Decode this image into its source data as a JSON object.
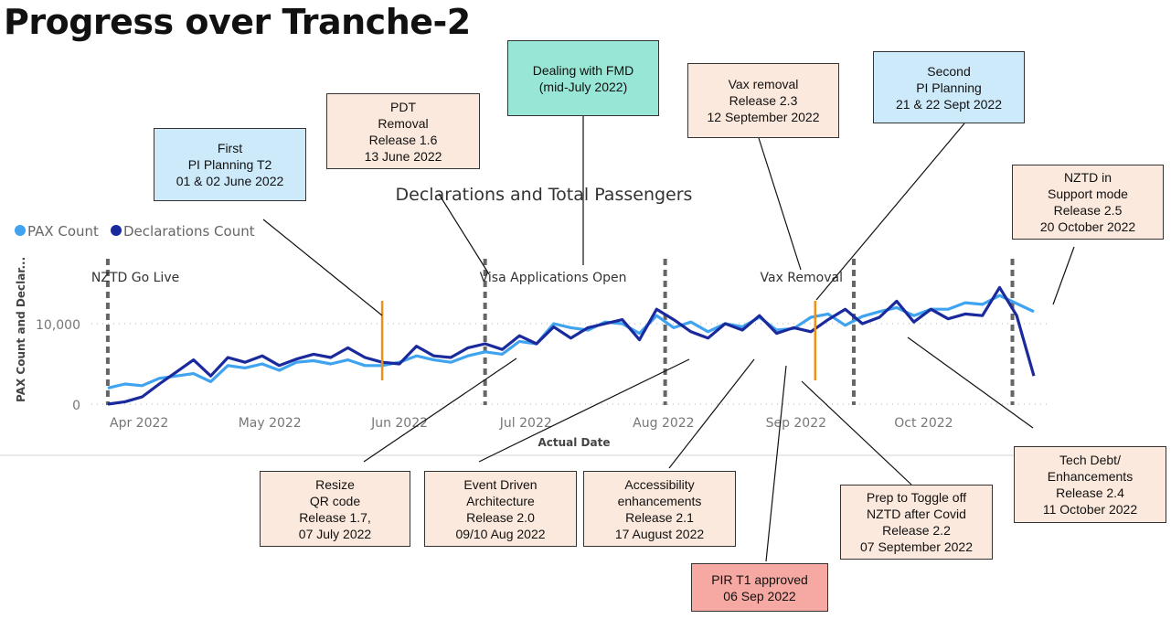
{
  "title": "Progress over Tranche-2",
  "colors": {
    "pax": "#3fa3f0",
    "declarations": "#1a2a9c",
    "milestone": "#f0901c",
    "reference": "#666666"
  },
  "chart_data": {
    "type": "line",
    "title": "Declarations and Total Passengers",
    "xlabel": "Actual Date",
    "ylabel": "PAX Count and Declar...",
    "ylim": [
      0,
      15000
    ],
    "yticks": [
      {
        "value": 0,
        "label": "0"
      },
      {
        "value": 10000,
        "label": "10,000"
      }
    ],
    "xticks": [
      {
        "date": "2022-04-01",
        "label": "Apr 2022"
      },
      {
        "date": "2022-05-01",
        "label": "May 2022"
      },
      {
        "date": "2022-06-01",
        "label": "Jun 2022"
      },
      {
        "date": "2022-07-01",
        "label": "Jul 2022"
      },
      {
        "date": "2022-08-01",
        "label": "Aug 2022"
      },
      {
        "date": "2022-09-01",
        "label": "Sep 2022"
      },
      {
        "date": "2022-10-01",
        "label": "Oct 2022"
      }
    ],
    "grid": "horizontal dotted",
    "legend": "top-left",
    "x": [
      "2022-03-29",
      "2022-04-02",
      "2022-04-06",
      "2022-04-10",
      "2022-04-14",
      "2022-04-18",
      "2022-04-22",
      "2022-04-26",
      "2022-04-30",
      "2022-05-04",
      "2022-05-08",
      "2022-05-12",
      "2022-05-16",
      "2022-05-20",
      "2022-05-24",
      "2022-05-28",
      "2022-06-01",
      "2022-06-05",
      "2022-06-09",
      "2022-06-13",
      "2022-06-17",
      "2022-06-21",
      "2022-06-25",
      "2022-06-29",
      "2022-07-03",
      "2022-07-07",
      "2022-07-11",
      "2022-07-15",
      "2022-07-19",
      "2022-07-23",
      "2022-07-27",
      "2022-07-31",
      "2022-08-04",
      "2022-08-08",
      "2022-08-12",
      "2022-08-16",
      "2022-08-20",
      "2022-08-24",
      "2022-08-28",
      "2022-09-01",
      "2022-09-05",
      "2022-09-09",
      "2022-09-13",
      "2022-09-17",
      "2022-09-21",
      "2022-09-25",
      "2022-09-29",
      "2022-10-03",
      "2022-10-07",
      "2022-10-11",
      "2022-10-15",
      "2022-10-19",
      "2022-10-23",
      "2022-10-27",
      "2022-10-31"
    ],
    "series": [
      {
        "name": "PAX Count",
        "values": [
          2000,
          2500,
          2300,
          3200,
          3500,
          3800,
          2800,
          4800,
          4500,
          5000,
          4200,
          5200,
          5400,
          5000,
          5500,
          4800,
          4800,
          5200,
          6000,
          5500,
          5200,
          6000,
          6500,
          6200,
          7800,
          7500,
          10000,
          9500,
          9200,
          10200,
          10000,
          8800,
          11000,
          9500,
          10200,
          9000,
          10000,
          9600,
          10800,
          9200,
          9400,
          10800,
          11200,
          9800,
          10900,
          11500,
          12000,
          11000,
          11800,
          11800,
          12600,
          12400,
          13500,
          12500,
          11500
        ]
      },
      {
        "name": "Declarations Count",
        "values": [
          0,
          300,
          900,
          2500,
          4000,
          5500,
          3500,
          5800,
          5200,
          6000,
          4800,
          5600,
          6200,
          5800,
          7000,
          5800,
          5200,
          5000,
          7200,
          6000,
          5800,
          7000,
          7500,
          6800,
          8500,
          7500,
          9600,
          8200,
          9500,
          10000,
          10500,
          8000,
          11800,
          10500,
          9000,
          8200,
          10000,
          9200,
          11000,
          8800,
          9500,
          9000,
          10500,
          11800,
          10000,
          10800,
          12800,
          10200,
          11800,
          10600,
          11200,
          11000,
          14500,
          11000,
          3500
        ]
      }
    ],
    "reference_lines": [
      {
        "date": "2022-03-29",
        "label": "NZTD Go Live"
      },
      {
        "date": "2022-06-25",
        "label": "Visa Applications Open"
      },
      {
        "date": "2022-08-06",
        "label": ""
      },
      {
        "date": "2022-09-19",
        "label": "Vax Removal"
      },
      {
        "date": "2022-10-26",
        "label": ""
      }
    ],
    "milestone_lines": [
      "2022-06-01",
      "2022-09-10"
    ]
  },
  "annotations": [
    {
      "lines": [
        "First",
        "PI Planning  T2",
        "01 & 02 June 2022"
      ],
      "style": "blue"
    },
    {
      "lines": [
        "PDT",
        "Removal",
        "Release 1.6",
        "13 June 2022"
      ],
      "style": "peach"
    },
    {
      "lines": [
        "Dealing with  FMD",
        "(mid-July 2022)"
      ],
      "style": "teal"
    },
    {
      "lines": [
        "Vax removal",
        "Release 2.3",
        "12 September 2022"
      ],
      "style": "peach"
    },
    {
      "lines": [
        "Second",
        "PI Planning",
        "21 & 22 Sept 2022"
      ],
      "style": "blue"
    },
    {
      "lines": [
        "NZTD in",
        "Support mode",
        "Release 2.5",
        "20 October 2022"
      ],
      "style": "peach"
    },
    {
      "lines": [
        "Resize",
        "QR code",
        "Release 1.7,",
        "07 July 2022"
      ],
      "style": "peach"
    },
    {
      "lines": [
        "Event Driven",
        "Architecture",
        "Release 2.0",
        "09/10 Aug 2022"
      ],
      "style": "peach"
    },
    {
      "lines": [
        "Accessibility",
        "enhancements",
        "Release 2.1",
        "17 August 2022"
      ],
      "style": "peach"
    },
    {
      "lines": [
        "PIR T1 approved",
        "06 Sep 2022"
      ],
      "style": "pink"
    },
    {
      "lines": [
        "Prep to Toggle off",
        "NZTD after Covid",
        "Release 2.2",
        "07 September 2022"
      ],
      "style": "peach"
    },
    {
      "lines": [
        "Tech Debt/",
        "Enhancements",
        "Release 2.4",
        "11 October 2022"
      ],
      "style": "peach"
    }
  ]
}
